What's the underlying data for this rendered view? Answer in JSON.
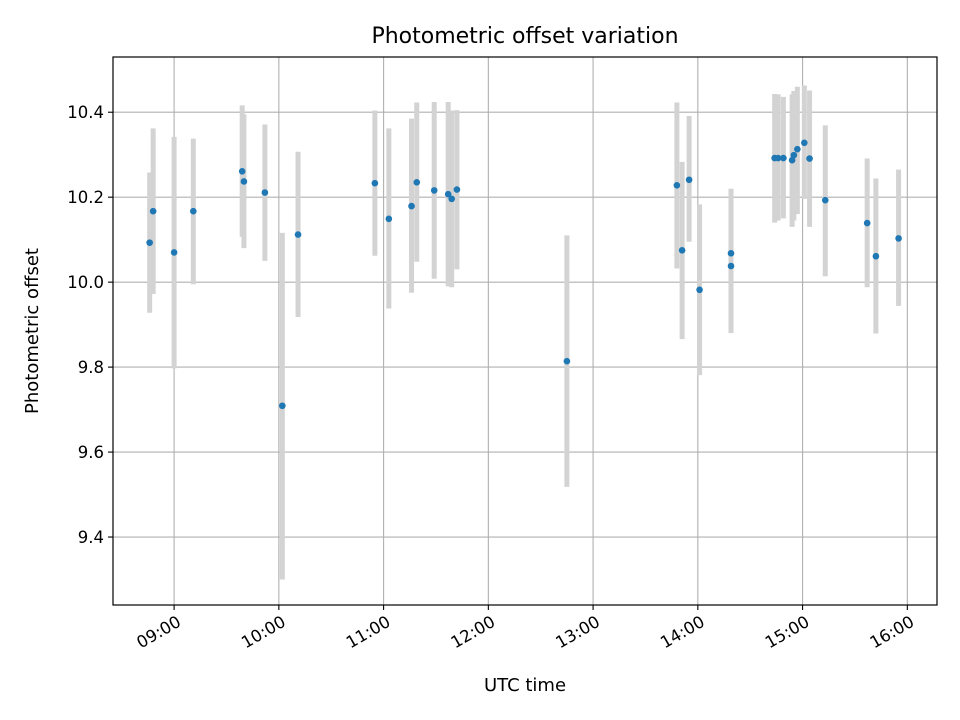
{
  "chart_data": {
    "type": "scatter",
    "title": "Photometric offset variation",
    "xlabel": "UTC time",
    "ylabel": "Photometric offset",
    "xlim": [
      "08:25",
      "16:17"
    ],
    "ylim": [
      9.24,
      10.53
    ],
    "x_ticks": [
      "09:00",
      "10:00",
      "11:00",
      "12:00",
      "13:00",
      "14:00",
      "15:00",
      "16:00"
    ],
    "y_ticks": [
      "9.4",
      "9.6",
      "9.8",
      "10.0",
      "10.2",
      "10.4"
    ],
    "y_tick_values": [
      9.4,
      9.6,
      9.8,
      10.0,
      10.2,
      10.4
    ],
    "grid": true,
    "errorbar_color": "#d3d3d3",
    "marker_color": "#1f77b4",
    "points": [
      {
        "time": "08:46",
        "y": 10.093,
        "ylo": 9.928,
        "yhi": 10.258
      },
      {
        "time": "08:48",
        "y": 10.167,
        "ylo": 9.972,
        "yhi": 10.362
      },
      {
        "time": "09:00",
        "y": 10.07,
        "ylo": 9.797,
        "yhi": 10.342
      },
      {
        "time": "09:11",
        "y": 10.167,
        "ylo": 9.995,
        "yhi": 10.338
      },
      {
        "time": "09:39",
        "y": 10.261,
        "ylo": 10.107,
        "yhi": 10.416
      },
      {
        "time": "09:40",
        "y": 10.237,
        "ylo": 10.08,
        "yhi": 10.395
      },
      {
        "time": "09:52",
        "y": 10.211,
        "ylo": 10.05,
        "yhi": 10.371
      },
      {
        "time": "10:02",
        "y": 9.709,
        "ylo": 9.3,
        "yhi": 10.116
      },
      {
        "time": "10:11",
        "y": 10.112,
        "ylo": 9.918,
        "yhi": 10.307
      },
      {
        "time": "10:55",
        "y": 10.233,
        "ylo": 10.062,
        "yhi": 10.404
      },
      {
        "time": "11:03",
        "y": 10.149,
        "ylo": 9.938,
        "yhi": 10.362
      },
      {
        "time": "11:16",
        "y": 10.179,
        "ylo": 9.975,
        "yhi": 10.385
      },
      {
        "time": "11:19",
        "y": 10.235,
        "ylo": 10.048,
        "yhi": 10.423
      },
      {
        "time": "11:29",
        "y": 10.216,
        "ylo": 10.008,
        "yhi": 10.424
      },
      {
        "time": "11:37",
        "y": 10.207,
        "ylo": 9.99,
        "yhi": 10.424
      },
      {
        "time": "11:39",
        "y": 10.196,
        "ylo": 9.988,
        "yhi": 10.404
      },
      {
        "time": "11:42",
        "y": 10.218,
        "ylo": 10.03,
        "yhi": 10.405
      },
      {
        "time": "12:45",
        "y": 9.814,
        "ylo": 9.518,
        "yhi": 10.11
      },
      {
        "time": "13:48",
        "y": 10.228,
        "ylo": 10.032,
        "yhi": 10.423
      },
      {
        "time": "13:51",
        "y": 10.075,
        "ylo": 9.866,
        "yhi": 10.283
      },
      {
        "time": "13:55",
        "y": 10.241,
        "ylo": 10.095,
        "yhi": 10.391
      },
      {
        "time": "14:01",
        "y": 9.982,
        "ylo": 9.781,
        "yhi": 10.183
      },
      {
        "time": "14:19",
        "y": 10.038,
        "ylo": 9.88,
        "yhi": 10.197
      },
      {
        "time": "14:19",
        "y": 10.068,
        "ylo": 9.915,
        "yhi": 10.22
      },
      {
        "time": "14:44",
        "y": 10.292,
        "ylo": 10.14,
        "yhi": 10.443
      },
      {
        "time": "14:46",
        "y": 10.292,
        "ylo": 10.145,
        "yhi": 10.442
      },
      {
        "time": "14:49",
        "y": 10.292,
        "ylo": 10.15,
        "yhi": 10.436
      },
      {
        "time": "14:54",
        "y": 10.287,
        "ylo": 10.13,
        "yhi": 10.442
      },
      {
        "time": "14:55",
        "y": 10.299,
        "ylo": 10.145,
        "yhi": 10.45
      },
      {
        "time": "14:57",
        "y": 10.313,
        "ylo": 10.16,
        "yhi": 10.46
      },
      {
        "time": "15:01",
        "y": 10.328,
        "ylo": 10.196,
        "yhi": 10.463
      },
      {
        "time": "15:04",
        "y": 10.291,
        "ylo": 10.13,
        "yhi": 10.451
      },
      {
        "time": "15:13",
        "y": 10.193,
        "ylo": 10.014,
        "yhi": 10.369
      },
      {
        "time": "15:37",
        "y": 10.139,
        "ylo": 9.988,
        "yhi": 10.291
      },
      {
        "time": "15:42",
        "y": 10.061,
        "ylo": 9.879,
        "yhi": 10.244
      },
      {
        "time": "15:55",
        "y": 10.103,
        "ylo": 9.944,
        "yhi": 10.265
      }
    ]
  }
}
